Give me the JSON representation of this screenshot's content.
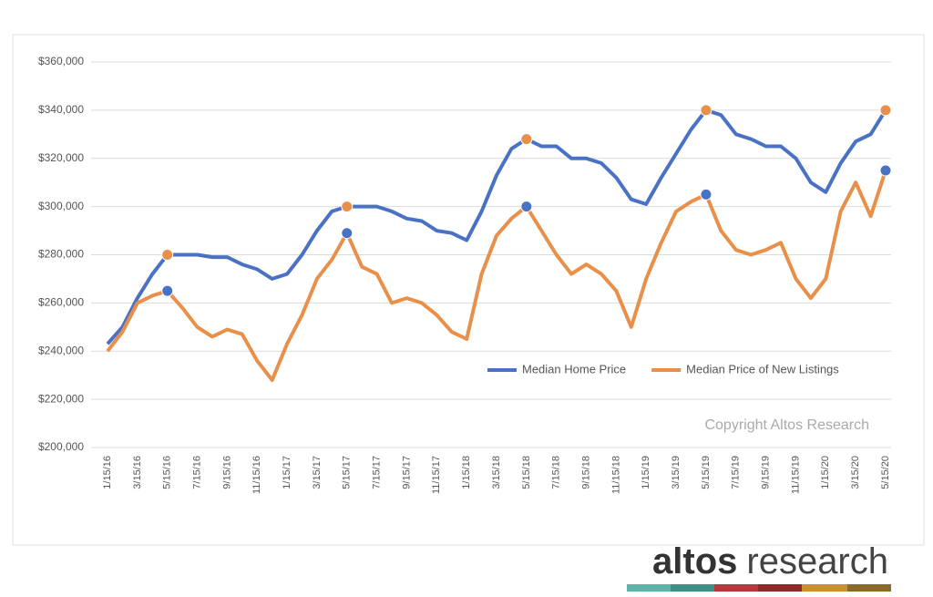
{
  "chart_data": {
    "type": "line",
    "categories": [
      "1/15/16",
      null,
      "3/15/16",
      null,
      "5/15/16",
      null,
      "7/15/16",
      null,
      "9/15/16",
      null,
      "11/15/16",
      null,
      "1/15/17",
      null,
      "3/15/17",
      null,
      "5/15/17",
      null,
      "7/15/17",
      null,
      "9/15/17",
      null,
      "11/15/17",
      null,
      "1/15/18",
      null,
      "3/15/18",
      null,
      "5/15/18",
      null,
      "7/15/18",
      null,
      "9/15/18",
      null,
      "11/15/18",
      null,
      "1/15/19",
      null,
      "3/15/19",
      null,
      "5/15/19",
      null,
      "7/15/19",
      null,
      "9/15/19",
      null,
      "11/15/19",
      null,
      "1/15/20",
      null,
      "3/15/20",
      null,
      "5/15/20"
    ],
    "series": [
      {
        "name": "Median Home Price",
        "color": "#4a72c4",
        "marker_color": "#e8904a",
        "values": [
          243000,
          250000,
          262000,
          272000,
          280000,
          280000,
          280000,
          279000,
          279000,
          276000,
          274000,
          270000,
          272000,
          280000,
          290000,
          298000,
          300000,
          300000,
          300000,
          298000,
          295000,
          294000,
          290000,
          289000,
          286000,
          298000,
          313000,
          324000,
          328000,
          325000,
          325000,
          320000,
          320000,
          318000,
          312000,
          303000,
          301000,
          312000,
          322000,
          332000,
          340000,
          338000,
          330000,
          328000,
          325000,
          325000,
          320000,
          310000,
          306000,
          318000,
          327000,
          330000,
          340000
        ]
      },
      {
        "name": "Median Price of New Listings",
        "color": "#e8904a",
        "marker_color": "#4a72c4",
        "values": [
          240000,
          248000,
          260000,
          263000,
          265000,
          258000,
          250000,
          246000,
          249000,
          247000,
          236000,
          228000,
          243000,
          255000,
          270000,
          278000,
          289000,
          275000,
          272000,
          260000,
          262000,
          260000,
          255000,
          248000,
          245000,
          272000,
          288000,
          295000,
          300000,
          290000,
          280000,
          272000,
          276000,
          272000,
          265000,
          250000,
          270000,
          285000,
          298000,
          302000,
          305000,
          290000,
          282000,
          280000,
          282000,
          285000,
          270000,
          262000,
          270000,
          298000,
          310000,
          296000,
          315000
        ]
      }
    ],
    "markers_at": [
      "5/15/16",
      "5/15/17",
      "5/15/18",
      "5/15/19",
      "5/15/20"
    ],
    "ylim": [
      200000,
      360000
    ],
    "yticks": [
      {
        "value": 200000,
        "label": "$200,000"
      },
      {
        "value": 220000,
        "label": "$220,000"
      },
      {
        "value": 240000,
        "label": "$240,000"
      },
      {
        "value": 260000,
        "label": "$260,000"
      },
      {
        "value": 280000,
        "label": "$280,000"
      },
      {
        "value": 300000,
        "label": "$300,000"
      },
      {
        "value": 320000,
        "label": "$320,000"
      },
      {
        "value": 340000,
        "label": "$340,000"
      },
      {
        "value": 360000,
        "label": "$360,000"
      }
    ],
    "grid": true,
    "legend": "lower-right",
    "annotation": "Copyright Altos Research",
    "logo": {
      "bold": "altos",
      "light": "research"
    }
  }
}
